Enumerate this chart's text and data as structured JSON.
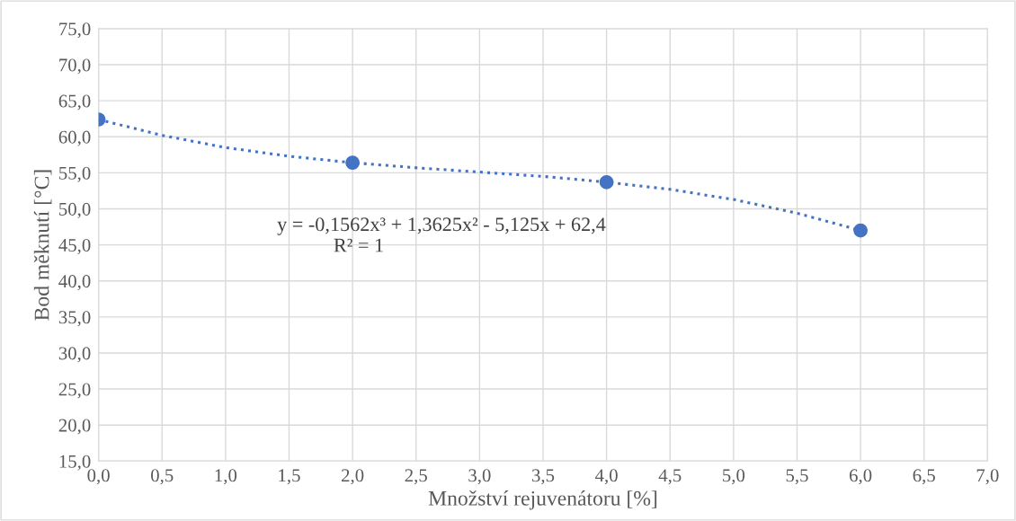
{
  "chart_data": {
    "type": "scatter",
    "xlabel": "Množství rejuvenátoru [%]",
    "ylabel": "Bod měknutí [°C]",
    "x": [
      0,
      2,
      4,
      6
    ],
    "series": [
      {
        "color": "#4472c4",
        "marker": "circle",
        "values": [
          62.4,
          56.4,
          53.7,
          47.0
        ]
      },
      {
        "type": "line",
        "color": "#4472c4",
        "line_style": "dotted",
        "marker": "none",
        "x": [
          0,
          0.5,
          1,
          1.5,
          2,
          2.5,
          3,
          3.5,
          4,
          4.5,
          5,
          5.5,
          6
        ],
        "values": [
          62.4,
          60.2,
          58.5,
          57.3,
          56.4,
          55.7,
          55.1,
          54.5,
          53.7,
          52.7,
          51.3,
          49.4,
          47.0
        ]
      }
    ],
    "annotations": [
      "y = -0,1562x³ + 1,3625x² - 5,125x + 62,4",
      "R² = 1"
    ],
    "xlim": [
      0,
      7
    ],
    "xticks": [
      {
        "value": 0,
        "label": "0,0"
      },
      {
        "value": 0.5,
        "label": "0,5"
      },
      {
        "value": 1,
        "label": "1,0"
      },
      {
        "value": 1.5,
        "label": "1,5"
      },
      {
        "value": 2,
        "label": "2,0"
      },
      {
        "value": 2.5,
        "label": "2,5"
      },
      {
        "value": 3,
        "label": "3,0"
      },
      {
        "value": 3.5,
        "label": "3,5"
      },
      {
        "value": 4,
        "label": "4,0"
      },
      {
        "value": 4.5,
        "label": "4,5"
      },
      {
        "value": 5,
        "label": "5,0"
      },
      {
        "value": 5.5,
        "label": "5,5"
      },
      {
        "value": 6,
        "label": "6,0"
      },
      {
        "value": 6.5,
        "label": "6,5"
      },
      {
        "value": 7,
        "label": "7,0"
      }
    ],
    "ylim": [
      15,
      75
    ],
    "yticks": [
      {
        "value": 15,
        "label": "15,0"
      },
      {
        "value": 20,
        "label": "20,0"
      },
      {
        "value": 25,
        "label": "25,0"
      },
      {
        "value": 30,
        "label": "30,0"
      },
      {
        "value": 35,
        "label": "35,0"
      },
      {
        "value": 40,
        "label": "40,0"
      },
      {
        "value": 45,
        "label": "45,0"
      },
      {
        "value": 50,
        "label": "50,0"
      },
      {
        "value": 55,
        "label": "55,0"
      },
      {
        "value": 60,
        "label": "60,0"
      },
      {
        "value": 65,
        "label": "65,0"
      },
      {
        "value": 70,
        "label": "70,0"
      },
      {
        "value": 75,
        "label": "75,0"
      }
    ],
    "grid": true
  }
}
